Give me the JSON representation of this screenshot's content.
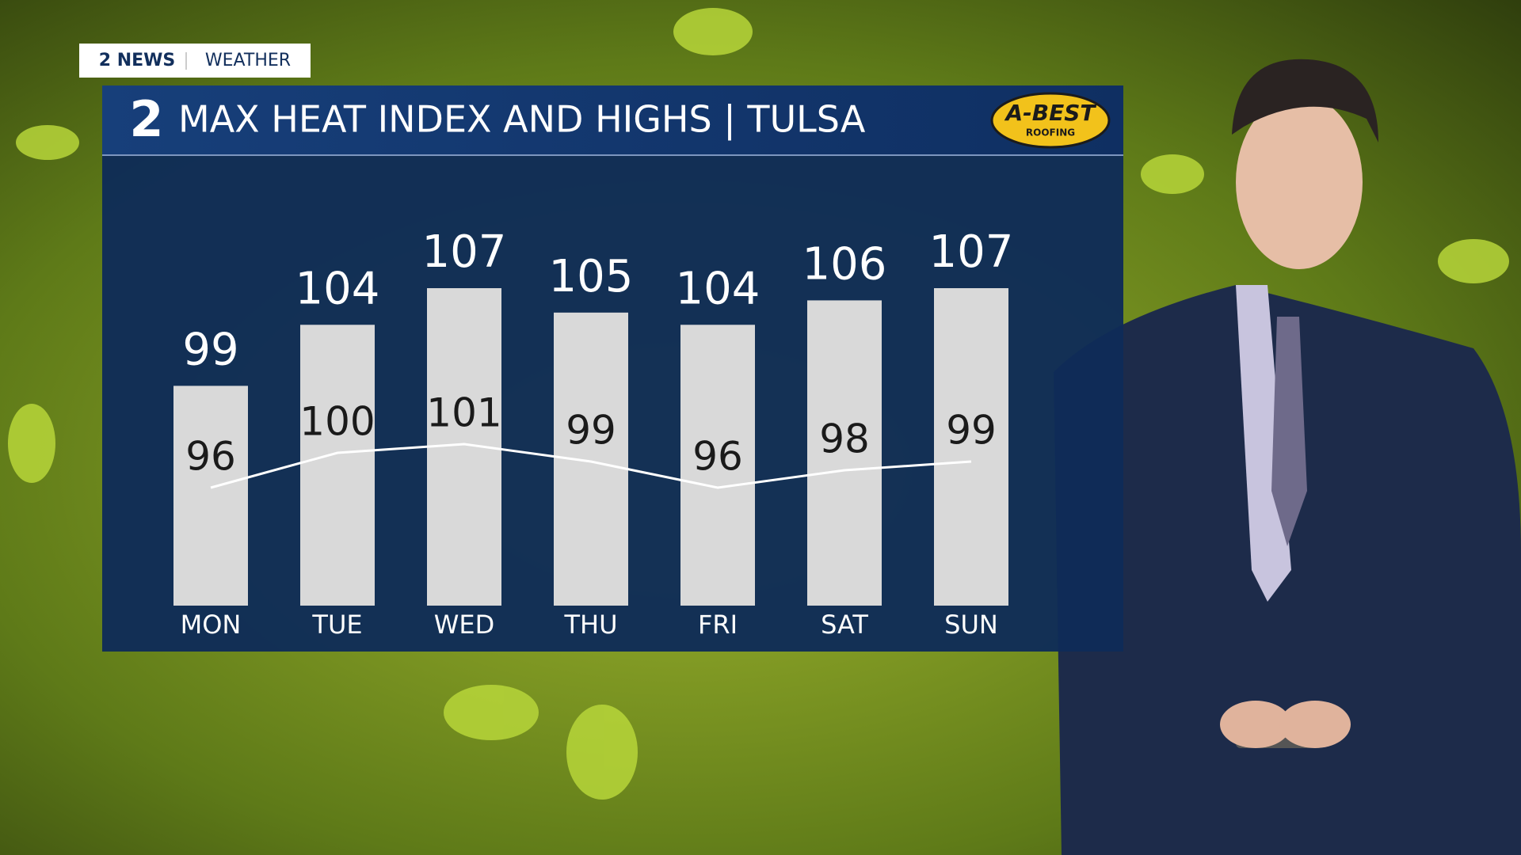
{
  "tag": {
    "brand": "2 NEWS",
    "section": "WEATHER"
  },
  "sponsor": {
    "name": "A-BEST",
    "sub": "ROOFING"
  },
  "chart_data": {
    "type": "bar",
    "logo": "2",
    "title": "MAX HEAT INDEX AND HIGHS | TULSA",
    "categories": [
      "MON",
      "TUE",
      "WED",
      "THU",
      "FRI",
      "SAT",
      "SUN"
    ],
    "series": [
      {
        "type": "bar",
        "color": "#d9d9d9",
        "values": [
          99,
          104,
          107,
          105,
          104,
          106,
          107
        ]
      },
      {
        "type": "line",
        "color": "#ffffff",
        "values": [
          96,
          100,
          101,
          99,
          96,
          98,
          99
        ]
      }
    ]
  }
}
